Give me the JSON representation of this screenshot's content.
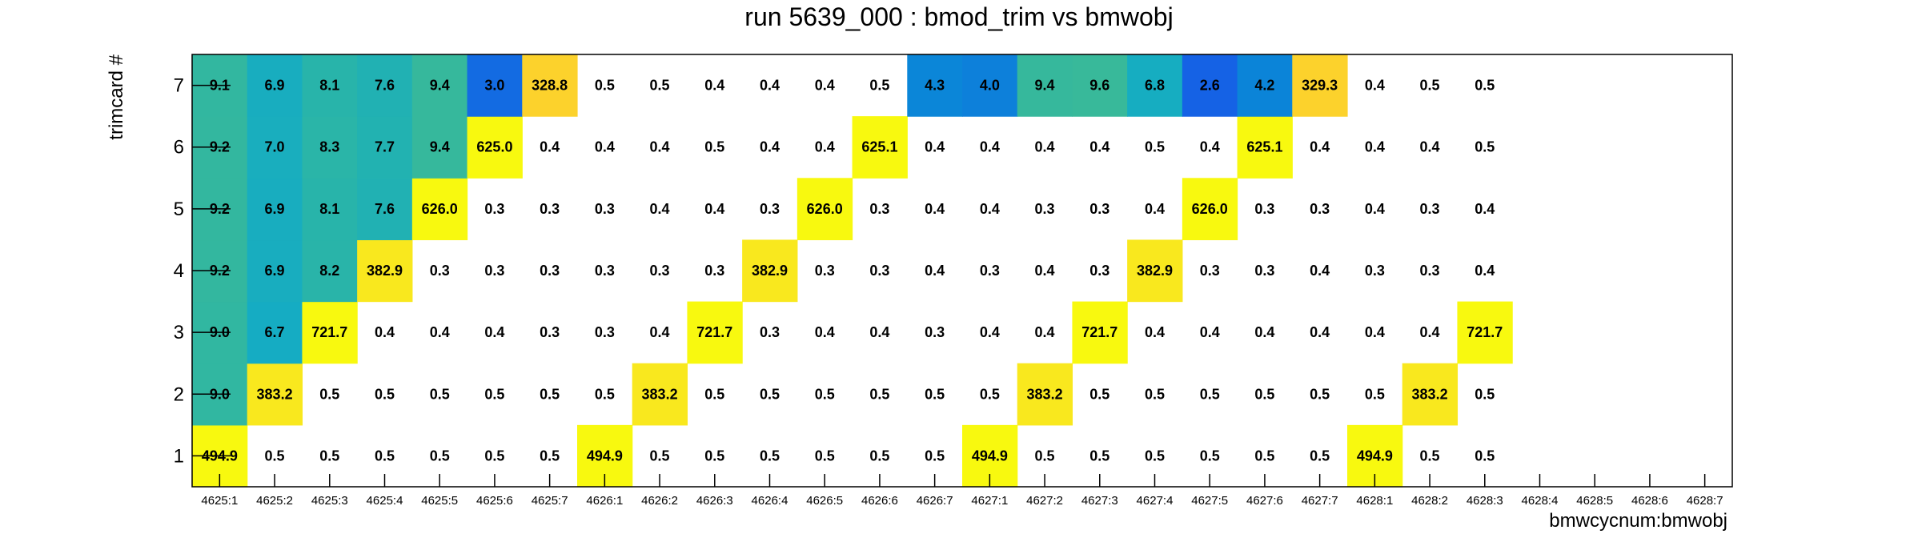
{
  "chart_data": {
    "type": "heatmap",
    "title": "run 5639_000 : bmod_trim vs bmwobj",
    "xlabel": "bmwcycnum:bmwobj",
    "ylabel": "trimcard #",
    "categories": [
      "4625:1",
      "4625:2",
      "4625:3",
      "4625:4",
      "4625:5",
      "4625:6",
      "4625:7",
      "4626:1",
      "4626:2",
      "4626:3",
      "4626:4",
      "4626:5",
      "4626:6",
      "4626:7",
      "4627:1",
      "4627:2",
      "4627:3",
      "4627:4",
      "4627:5",
      "4627:6",
      "4627:7",
      "4628:1",
      "4628:2",
      "4628:3",
      "4628:4",
      "4628:5",
      "4628:6",
      "4628:7"
    ],
    "y": [
      1,
      2,
      3,
      4,
      5,
      6,
      7
    ],
    "values": [
      [
        494.9,
        0.5,
        0.5,
        0.5,
        0.5,
        0.5,
        0.5,
        494.9,
        0.5,
        0.5,
        0.5,
        0.5,
        0.5,
        0.5,
        494.9,
        0.5,
        0.5,
        0.5,
        0.5,
        0.5,
        0.5,
        494.9,
        0.5,
        0.5,
        null,
        null,
        null,
        null
      ],
      [
        9.0,
        383.2,
        0.5,
        0.5,
        0.5,
        0.5,
        0.5,
        0.5,
        383.2,
        0.5,
        0.5,
        0.5,
        0.5,
        0.5,
        0.5,
        383.2,
        0.5,
        0.5,
        0.5,
        0.5,
        0.5,
        0.5,
        383.2,
        0.5,
        null,
        null,
        null,
        null
      ],
      [
        9.0,
        6.7,
        721.7,
        0.4,
        0.4,
        0.4,
        0.3,
        0.3,
        0.4,
        721.7,
        0.3,
        0.4,
        0.4,
        0.3,
        0.4,
        0.4,
        721.7,
        0.4,
        0.4,
        0.4,
        0.4,
        0.4,
        0.4,
        721.7,
        null,
        null,
        null,
        null
      ],
      [
        9.2,
        6.9,
        8.2,
        382.9,
        0.3,
        0.3,
        0.3,
        0.3,
        0.3,
        0.3,
        382.9,
        0.3,
        0.3,
        0.4,
        0.3,
        0.4,
        0.3,
        382.9,
        0.3,
        0.3,
        0.4,
        0.3,
        0.3,
        0.4,
        null,
        null,
        null,
        null
      ],
      [
        9.2,
        6.9,
        8.1,
        7.6,
        626.0,
        0.3,
        0.3,
        0.3,
        0.4,
        0.4,
        0.3,
        626.0,
        0.3,
        0.4,
        0.4,
        0.3,
        0.3,
        0.4,
        626.0,
        0.3,
        0.3,
        0.4,
        0.3,
        0.4,
        null,
        null,
        null,
        null
      ],
      [
        9.2,
        7.0,
        8.3,
        7.7,
        9.4,
        625.0,
        0.4,
        0.4,
        0.4,
        0.5,
        0.4,
        0.4,
        625.1,
        0.4,
        0.4,
        0.4,
        0.4,
        0.5,
        0.4,
        625.1,
        0.4,
        0.4,
        0.4,
        0.5,
        null,
        null,
        null,
        null
      ],
      [
        9.1,
        6.9,
        8.1,
        7.6,
        9.4,
        3.0,
        328.8,
        0.5,
        0.5,
        0.4,
        0.4,
        0.4,
        0.5,
        4.3,
        4.0,
        9.4,
        9.6,
        6.8,
        2.6,
        4.2,
        329.3,
        0.4,
        0.5,
        0.5,
        null,
        null,
        null,
        null
      ]
    ],
    "grid": false,
    "legend": "none"
  }
}
